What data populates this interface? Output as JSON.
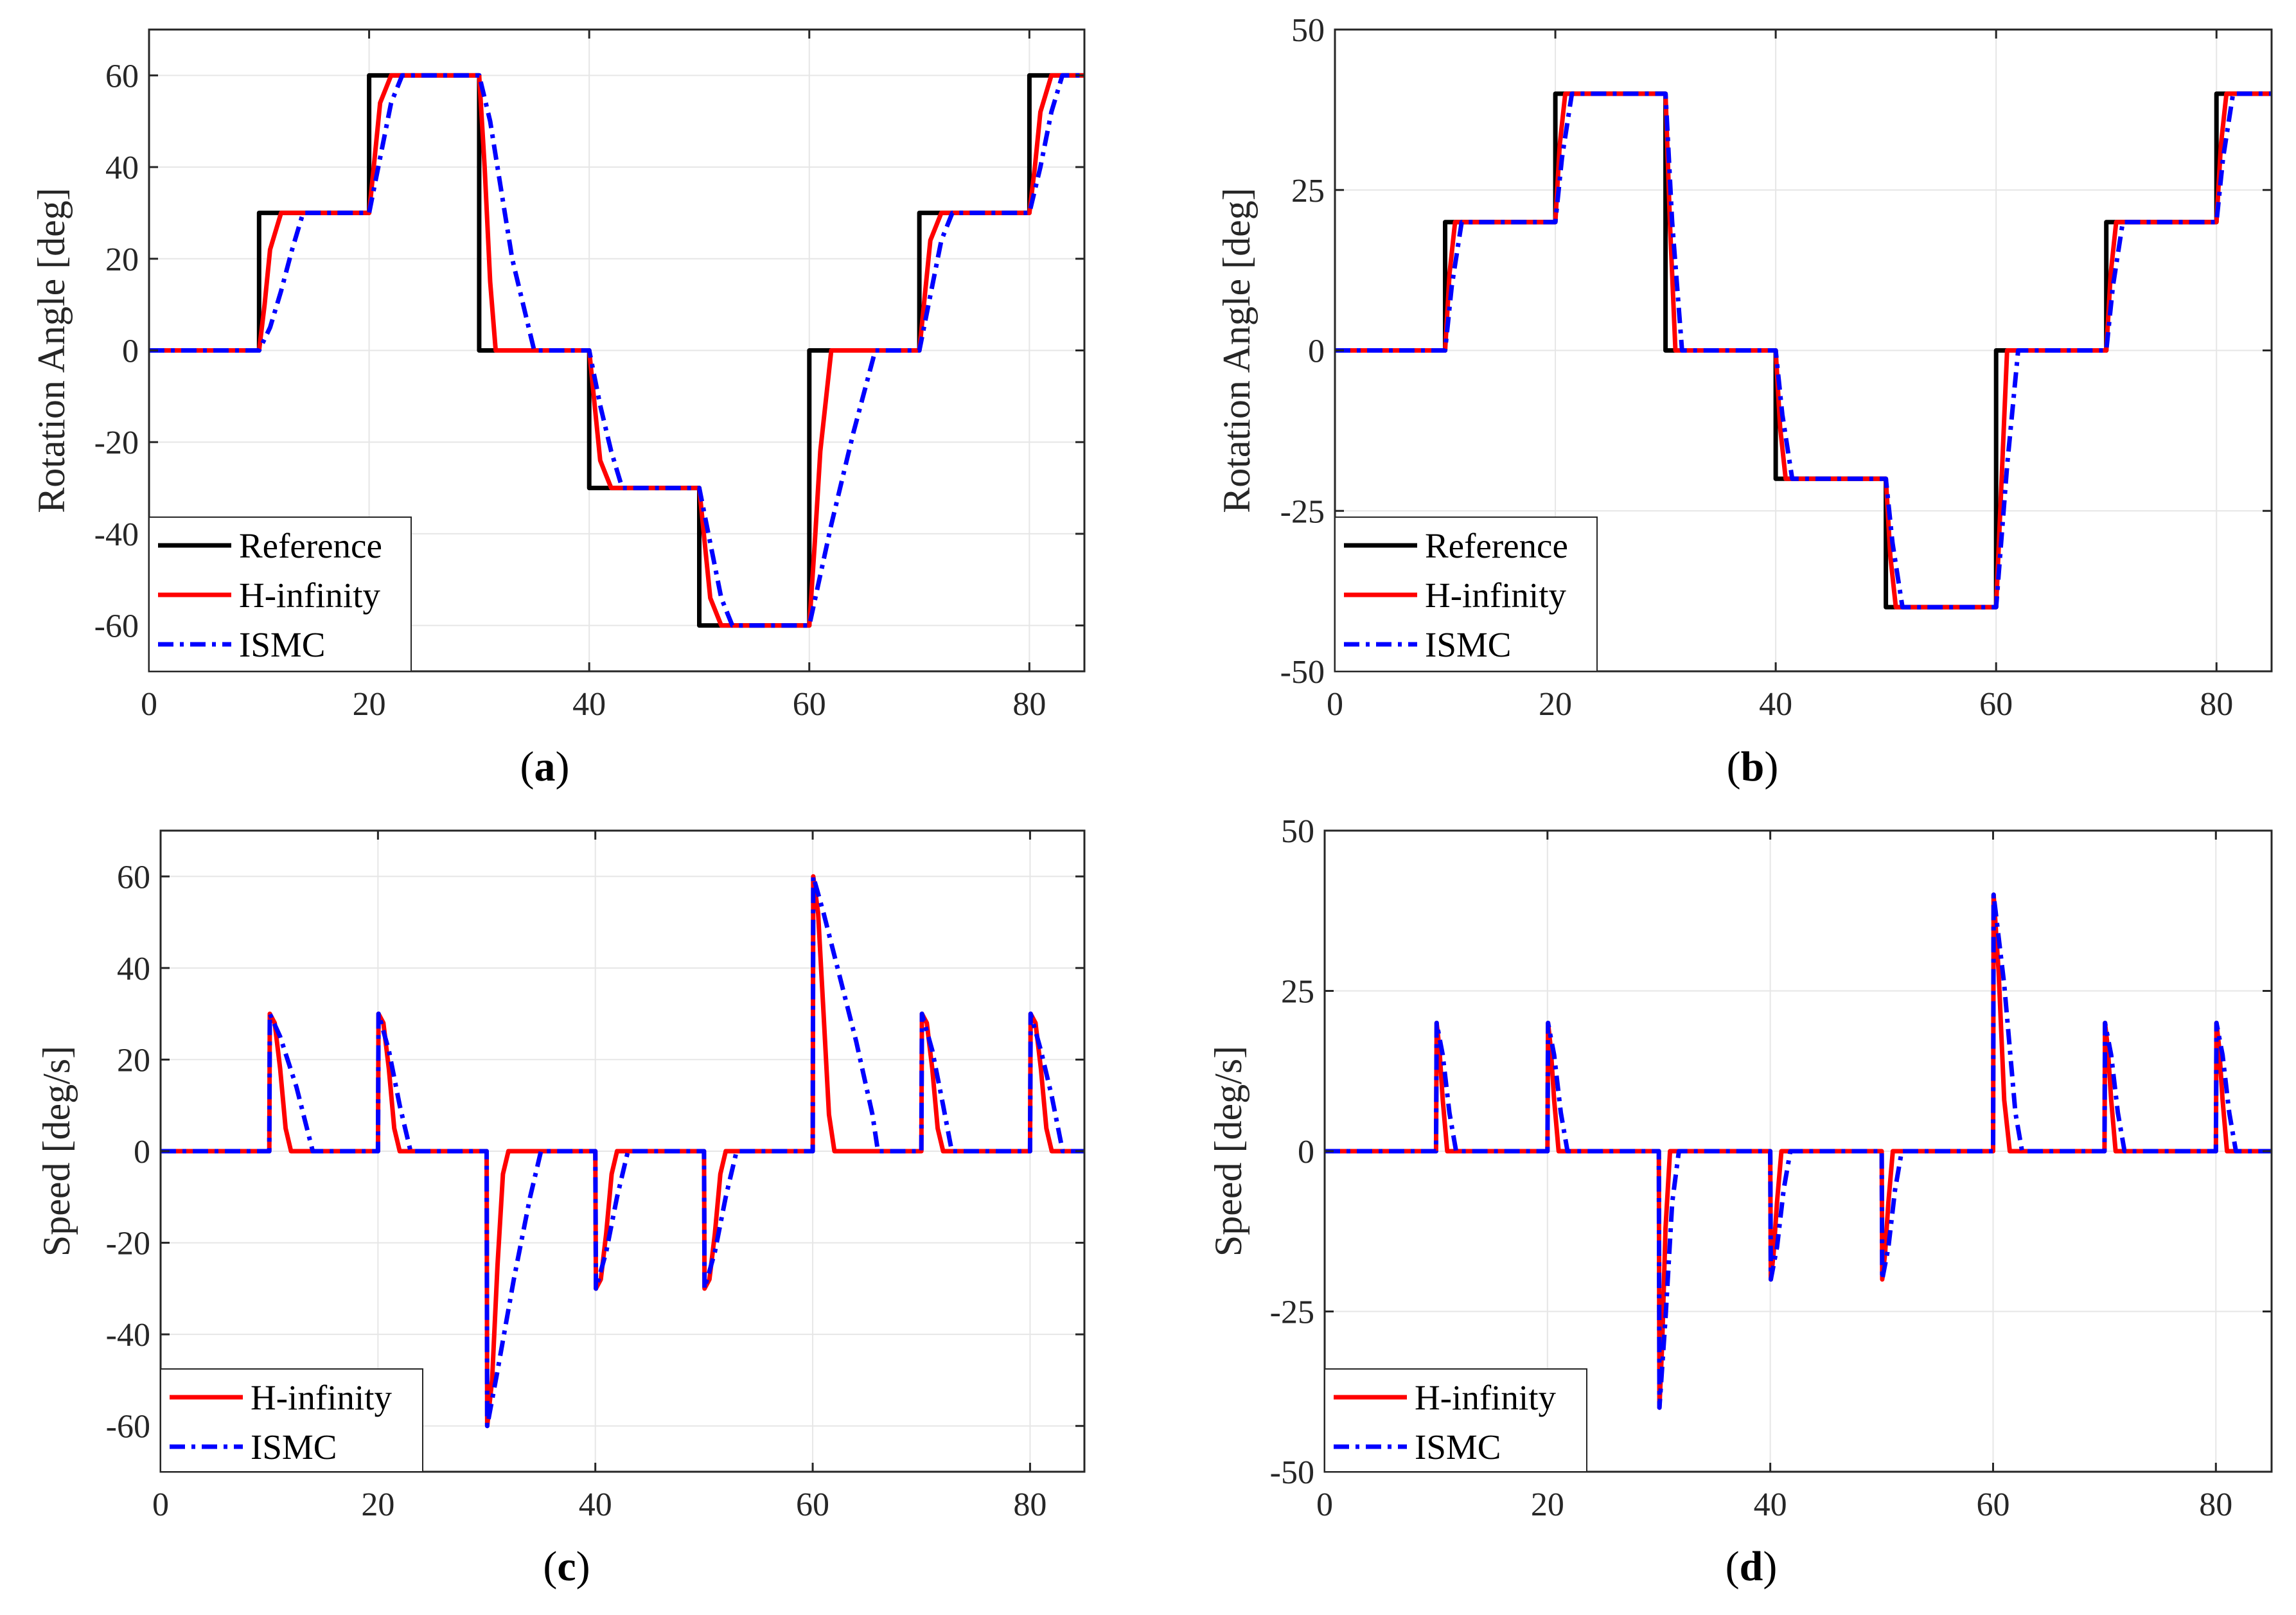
{
  "colors": {
    "reference": "#000000",
    "hinf": "#ff0000",
    "ismc": "#0000ff",
    "grid": "#e6e6e6",
    "axis": "#262626"
  },
  "chart_data": [
    {
      "id": "a",
      "type": "line",
      "caption_open": "(",
      "caption_letter": "a",
      "caption_close": ")",
      "ylabel": "Rotation Angle [deg]",
      "xlabel": "",
      "xlim": [
        0,
        85
      ],
      "ylim": [
        -70,
        70
      ],
      "xticks": [
        0,
        20,
        40,
        60,
        80
      ],
      "yticks": [
        -60,
        -40,
        -20,
        0,
        20,
        40,
        60
      ],
      "xtick_labels": [
        "0",
        "20",
        "40",
        "60",
        "80"
      ],
      "ytick_labels": [
        "-60",
        "-40",
        "-20",
        "0",
        "20",
        "40",
        "60"
      ],
      "grid": true,
      "legend_position": "bottom-left",
      "series": [
        {
          "name": "Reference",
          "style": "solid",
          "color_key": "reference",
          "x": [
            0,
            10,
            10,
            20,
            20,
            30,
            30,
            40,
            40,
            50,
            50,
            60,
            60,
            70,
            70,
            80,
            80,
            85
          ],
          "y": [
            0,
            0,
            30,
            30,
            60,
            60,
            0,
            0,
            -30,
            -30,
            -60,
            -60,
            0,
            0,
            30,
            30,
            60,
            60
          ]
        },
        {
          "name": "H-infinity",
          "style": "solid",
          "color_key": "hinf",
          "x": [
            0,
            10,
            10.5,
            11,
            12,
            20,
            20.5,
            21,
            22,
            30,
            30.5,
            31,
            31.5,
            40,
            40.5,
            41,
            42,
            50,
            50.5,
            51,
            52,
            60,
            60.5,
            61,
            62,
            70,
            70.5,
            71,
            72,
            80,
            80.5,
            81,
            82,
            85
          ],
          "y": [
            0,
            0,
            10,
            22,
            30,
            30,
            42,
            54,
            60,
            60,
            40,
            15,
            0,
            0,
            -12,
            -24,
            -30,
            -30,
            -42,
            -54,
            -60,
            -60,
            -42,
            -22,
            0,
            0,
            12,
            24,
            30,
            30,
            40,
            52,
            60,
            60
          ]
        },
        {
          "name": "ISMC",
          "style": "dashdot",
          "color_key": "ismc",
          "x": [
            0,
            10,
            11,
            12,
            13,
            14,
            20,
            21,
            22,
            23,
            30,
            31,
            32,
            33,
            35,
            40,
            41,
            42,
            43,
            50,
            51,
            52,
            53,
            60,
            62,
            64,
            66,
            70,
            71,
            72,
            73,
            80,
            81,
            82,
            83,
            85
          ],
          "y": [
            0,
            0,
            5,
            13,
            22,
            30,
            30,
            42,
            54,
            60,
            60,
            50,
            35,
            20,
            0,
            0,
            -12,
            -22,
            -30,
            -30,
            -42,
            -54,
            -60,
            -60,
            -38,
            -18,
            0,
            0,
            12,
            24,
            30,
            30,
            40,
            52,
            60,
            60
          ]
        }
      ]
    },
    {
      "id": "b",
      "type": "line",
      "caption_open": "(",
      "caption_letter": "b",
      "caption_close": ")",
      "ylabel": "Rotation Angle [deg]",
      "xlabel": "",
      "xlim": [
        0,
        85
      ],
      "ylim": [
        -50,
        50
      ],
      "xticks": [
        0,
        20,
        40,
        60,
        80
      ],
      "yticks": [
        -50,
        -25,
        0,
        25,
        50
      ],
      "xtick_labels": [
        "0",
        "20",
        "40",
        "60",
        "80"
      ],
      "ytick_labels": [
        "-50",
        "-25",
        "0",
        "25",
        "50"
      ],
      "grid": true,
      "legend_position": "bottom-left",
      "series": [
        {
          "name": "Reference",
          "style": "solid",
          "color_key": "reference",
          "x": [
            0,
            10,
            10,
            20,
            20,
            30,
            30,
            40,
            40,
            50,
            50,
            60,
            60,
            70,
            70,
            80,
            80,
            85
          ],
          "y": [
            0,
            0,
            20,
            20,
            40,
            40,
            0,
            0,
            -20,
            -20,
            -40,
            -40,
            0,
            0,
            20,
            20,
            40,
            40
          ]
        },
        {
          "name": "H-infinity",
          "style": "solid",
          "color_key": "hinf",
          "x": [
            0,
            10,
            10.4,
            10.9,
            20,
            20.4,
            20.9,
            30,
            30.4,
            30.9,
            40,
            40.4,
            40.9,
            50,
            50.4,
            50.9,
            60,
            60.5,
            61,
            70,
            70.4,
            70.9,
            80,
            80.4,
            80.9,
            85
          ],
          "y": [
            0,
            0,
            12,
            20,
            20,
            32,
            40,
            40,
            20,
            0,
            0,
            -12,
            -20,
            -20,
            -32,
            -40,
            -40,
            -20,
            0,
            0,
            12,
            20,
            20,
            32,
            40,
            40
          ]
        },
        {
          "name": "ISMC",
          "style": "dashdot",
          "color_key": "ismc",
          "x": [
            0,
            10,
            10.6,
            11.5,
            20,
            20.6,
            21.5,
            30,
            30.6,
            31.5,
            40,
            40.6,
            41.5,
            50,
            50.6,
            51.5,
            60,
            61,
            62,
            70,
            70.6,
            71.5,
            80,
            80.6,
            81.5,
            85
          ],
          "y": [
            0,
            0,
            10,
            20,
            20,
            30,
            40,
            40,
            20,
            0,
            0,
            -10,
            -20,
            -20,
            -30,
            -40,
            -40,
            -18,
            0,
            0,
            10,
            20,
            20,
            30,
            40,
            40
          ]
        }
      ]
    },
    {
      "id": "c",
      "type": "line",
      "caption_open": "(",
      "caption_letter": "c",
      "caption_close": ")",
      "ylabel": "Speed [deg/s]",
      "xlabel": "",
      "xlim": [
        0,
        85
      ],
      "ylim": [
        -70,
        70
      ],
      "xticks": [
        0,
        20,
        40,
        60,
        80
      ],
      "yticks": [
        -60,
        -40,
        -20,
        0,
        20,
        40,
        60
      ],
      "xtick_labels": [
        "0",
        "20",
        "40",
        "60",
        "80"
      ],
      "ytick_labels": [
        "-60",
        "-40",
        "-20",
        "0",
        "20",
        "40",
        "60"
      ],
      "grid": true,
      "legend_position": "bottom-left",
      "series": [
        {
          "name": "H-infinity",
          "style": "solid",
          "color_key": "hinf",
          "x": [
            0,
            10,
            10.05,
            10.5,
            11,
            11.5,
            12,
            20,
            20.05,
            20.5,
            21,
            21.5,
            22,
            30,
            30.05,
            30.5,
            31,
            31.5,
            32,
            40,
            40.05,
            40.5,
            41,
            41.5,
            42,
            50,
            50.05,
            50.5,
            51,
            51.5,
            52,
            60,
            60.05,
            60.5,
            61,
            61.5,
            62,
            70,
            70.05,
            70.5,
            71,
            71.5,
            72,
            80,
            80.05,
            80.5,
            81,
            81.5,
            82,
            85
          ],
          "y": [
            0,
            0,
            30,
            28,
            18,
            5,
            0,
            0,
            30,
            28,
            18,
            5,
            0,
            0,
            -60,
            -50,
            -25,
            -5,
            0,
            0,
            -30,
            -28,
            -18,
            -5,
            0,
            0,
            -30,
            -28,
            -18,
            -5,
            0,
            0,
            60,
            52,
            30,
            8,
            0,
            0,
            30,
            28,
            18,
            5,
            0,
            0,
            30,
            28,
            18,
            5,
            0,
            0
          ]
        },
        {
          "name": "ISMC",
          "style": "dashdot",
          "color_key": "ismc",
          "x": [
            0,
            10,
            10.05,
            11,
            12.5,
            14,
            20,
            20.05,
            21,
            22,
            23,
            30,
            30.05,
            31,
            32.5,
            34,
            35,
            40,
            40.05,
            41,
            42,
            43,
            50,
            50.05,
            51,
            52,
            53,
            60,
            60.05,
            61,
            62.5,
            64,
            65.5,
            66,
            70,
            70.05,
            71,
            72,
            72.8,
            80,
            80.05,
            81,
            82,
            83,
            85
          ],
          "y": [
            0,
            0,
            30,
            25,
            14,
            0,
            0,
            30,
            22,
            10,
            0,
            0,
            -60,
            -48,
            -28,
            -10,
            0,
            0,
            -30,
            -22,
            -10,
            0,
            0,
            -30,
            -22,
            -10,
            0,
            0,
            60,
            52,
            38,
            24,
            8,
            0,
            0,
            30,
            22,
            10,
            0,
            0,
            30,
            22,
            12,
            0,
            0
          ]
        }
      ]
    },
    {
      "id": "d",
      "type": "line",
      "caption_open": "(",
      "caption_letter": "d",
      "caption_close": ")",
      "ylabel": "Speed [deg/s]",
      "xlabel": "",
      "xlim": [
        0,
        85
      ],
      "ylim": [
        -50,
        50
      ],
      "xticks": [
        0,
        20,
        40,
        60,
        80
      ],
      "yticks": [
        -50,
        -25,
        0,
        25,
        50
      ],
      "xtick_labels": [
        "0",
        "20",
        "40",
        "60",
        "80"
      ],
      "ytick_labels": [
        "-50",
        "-25",
        "0",
        "25",
        "50"
      ],
      "grid": true,
      "legend_position": "bottom-left",
      "series": [
        {
          "name": "H-infinity",
          "style": "solid",
          "color_key": "hinf",
          "x": [
            0,
            10,
            10.05,
            10.3,
            10.6,
            11,
            20,
            20.05,
            20.3,
            20.6,
            21,
            30,
            30.05,
            30.3,
            30.6,
            31,
            40,
            40.05,
            40.3,
            40.6,
            41,
            50,
            50.05,
            50.3,
            50.6,
            51,
            60,
            60.05,
            60.5,
            61,
            61.5,
            70,
            70.05,
            70.3,
            70.6,
            71,
            80,
            80.05,
            80.3,
            80.6,
            81,
            85
          ],
          "y": [
            0,
            0,
            20,
            16,
            8,
            0,
            0,
            20,
            16,
            8,
            0,
            0,
            -40,
            -30,
            -12,
            0,
            0,
            -20,
            -16,
            -8,
            0,
            0,
            -20,
            -16,
            -8,
            0,
            0,
            40,
            28,
            8,
            0,
            0,
            20,
            16,
            8,
            0,
            0,
            20,
            16,
            8,
            0,
            0
          ]
        },
        {
          "name": "ISMC",
          "style": "dashdot",
          "color_key": "ismc",
          "x": [
            0,
            10,
            10.05,
            10.6,
            11.2,
            11.8,
            20,
            20.05,
            20.6,
            21.2,
            21.8,
            30,
            30.05,
            30.6,
            31.2,
            31.8,
            40,
            40.05,
            40.6,
            41.2,
            41.8,
            50,
            50.05,
            50.6,
            51.2,
            51.8,
            60,
            60.05,
            61,
            62,
            62.6,
            70,
            70.05,
            70.6,
            71.2,
            71.8,
            80,
            80.05,
            80.6,
            81.2,
            81.8,
            85
          ],
          "y": [
            0,
            0,
            20,
            15,
            6,
            0,
            0,
            20,
            15,
            6,
            0,
            0,
            -40,
            -26,
            -8,
            0,
            0,
            -20,
            -15,
            -6,
            0,
            0,
            -20,
            -15,
            -6,
            0,
            0,
            40,
            26,
            6,
            0,
            0,
            20,
            15,
            6,
            0,
            0,
            20,
            15,
            6,
            0,
            0
          ]
        }
      ]
    }
  ]
}
